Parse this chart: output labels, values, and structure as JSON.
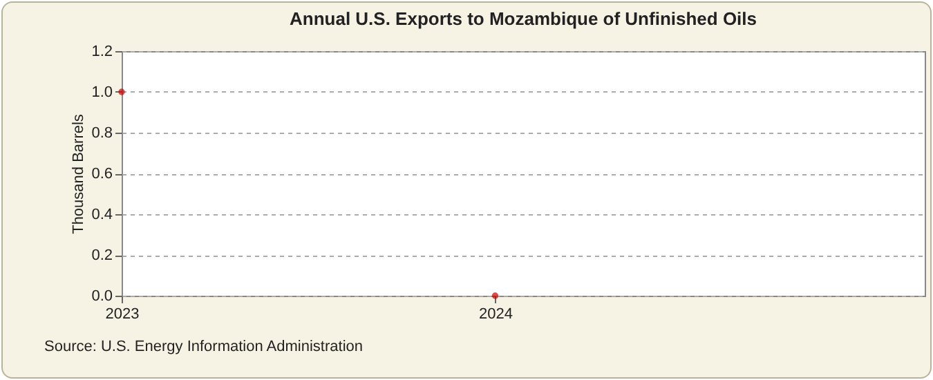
{
  "chart_data": {
    "type": "scatter",
    "title": "Annual U.S. Exports to Mozambique of Unfinished Oils",
    "ylabel": "Thousand Barrels",
    "x": [
      2023,
      2024
    ],
    "series": [
      {
        "color": "#cc0000",
        "values": [
          1.0,
          0.0
        ]
      }
    ],
    "xlim": [
      2023,
      2025.15
    ],
    "xticks": [
      2023,
      2024
    ],
    "ylim": [
      0,
      1.2
    ],
    "yticks": [
      {
        "value": 0,
        "label": "0.0"
      },
      {
        "value": 0.2,
        "label": "0.2"
      },
      {
        "value": 0.4,
        "label": "0.4"
      },
      {
        "value": 0.6,
        "label": "0.6"
      },
      {
        "value": 0.8,
        "label": "0.8"
      },
      {
        "value": 1.0,
        "label": "1.0"
      },
      {
        "value": 1.2,
        "label": "1.2"
      }
    ],
    "grid": "y",
    "marker": "circle",
    "annotations": [
      "Source: U.S. Energy Information Administration"
    ]
  }
}
